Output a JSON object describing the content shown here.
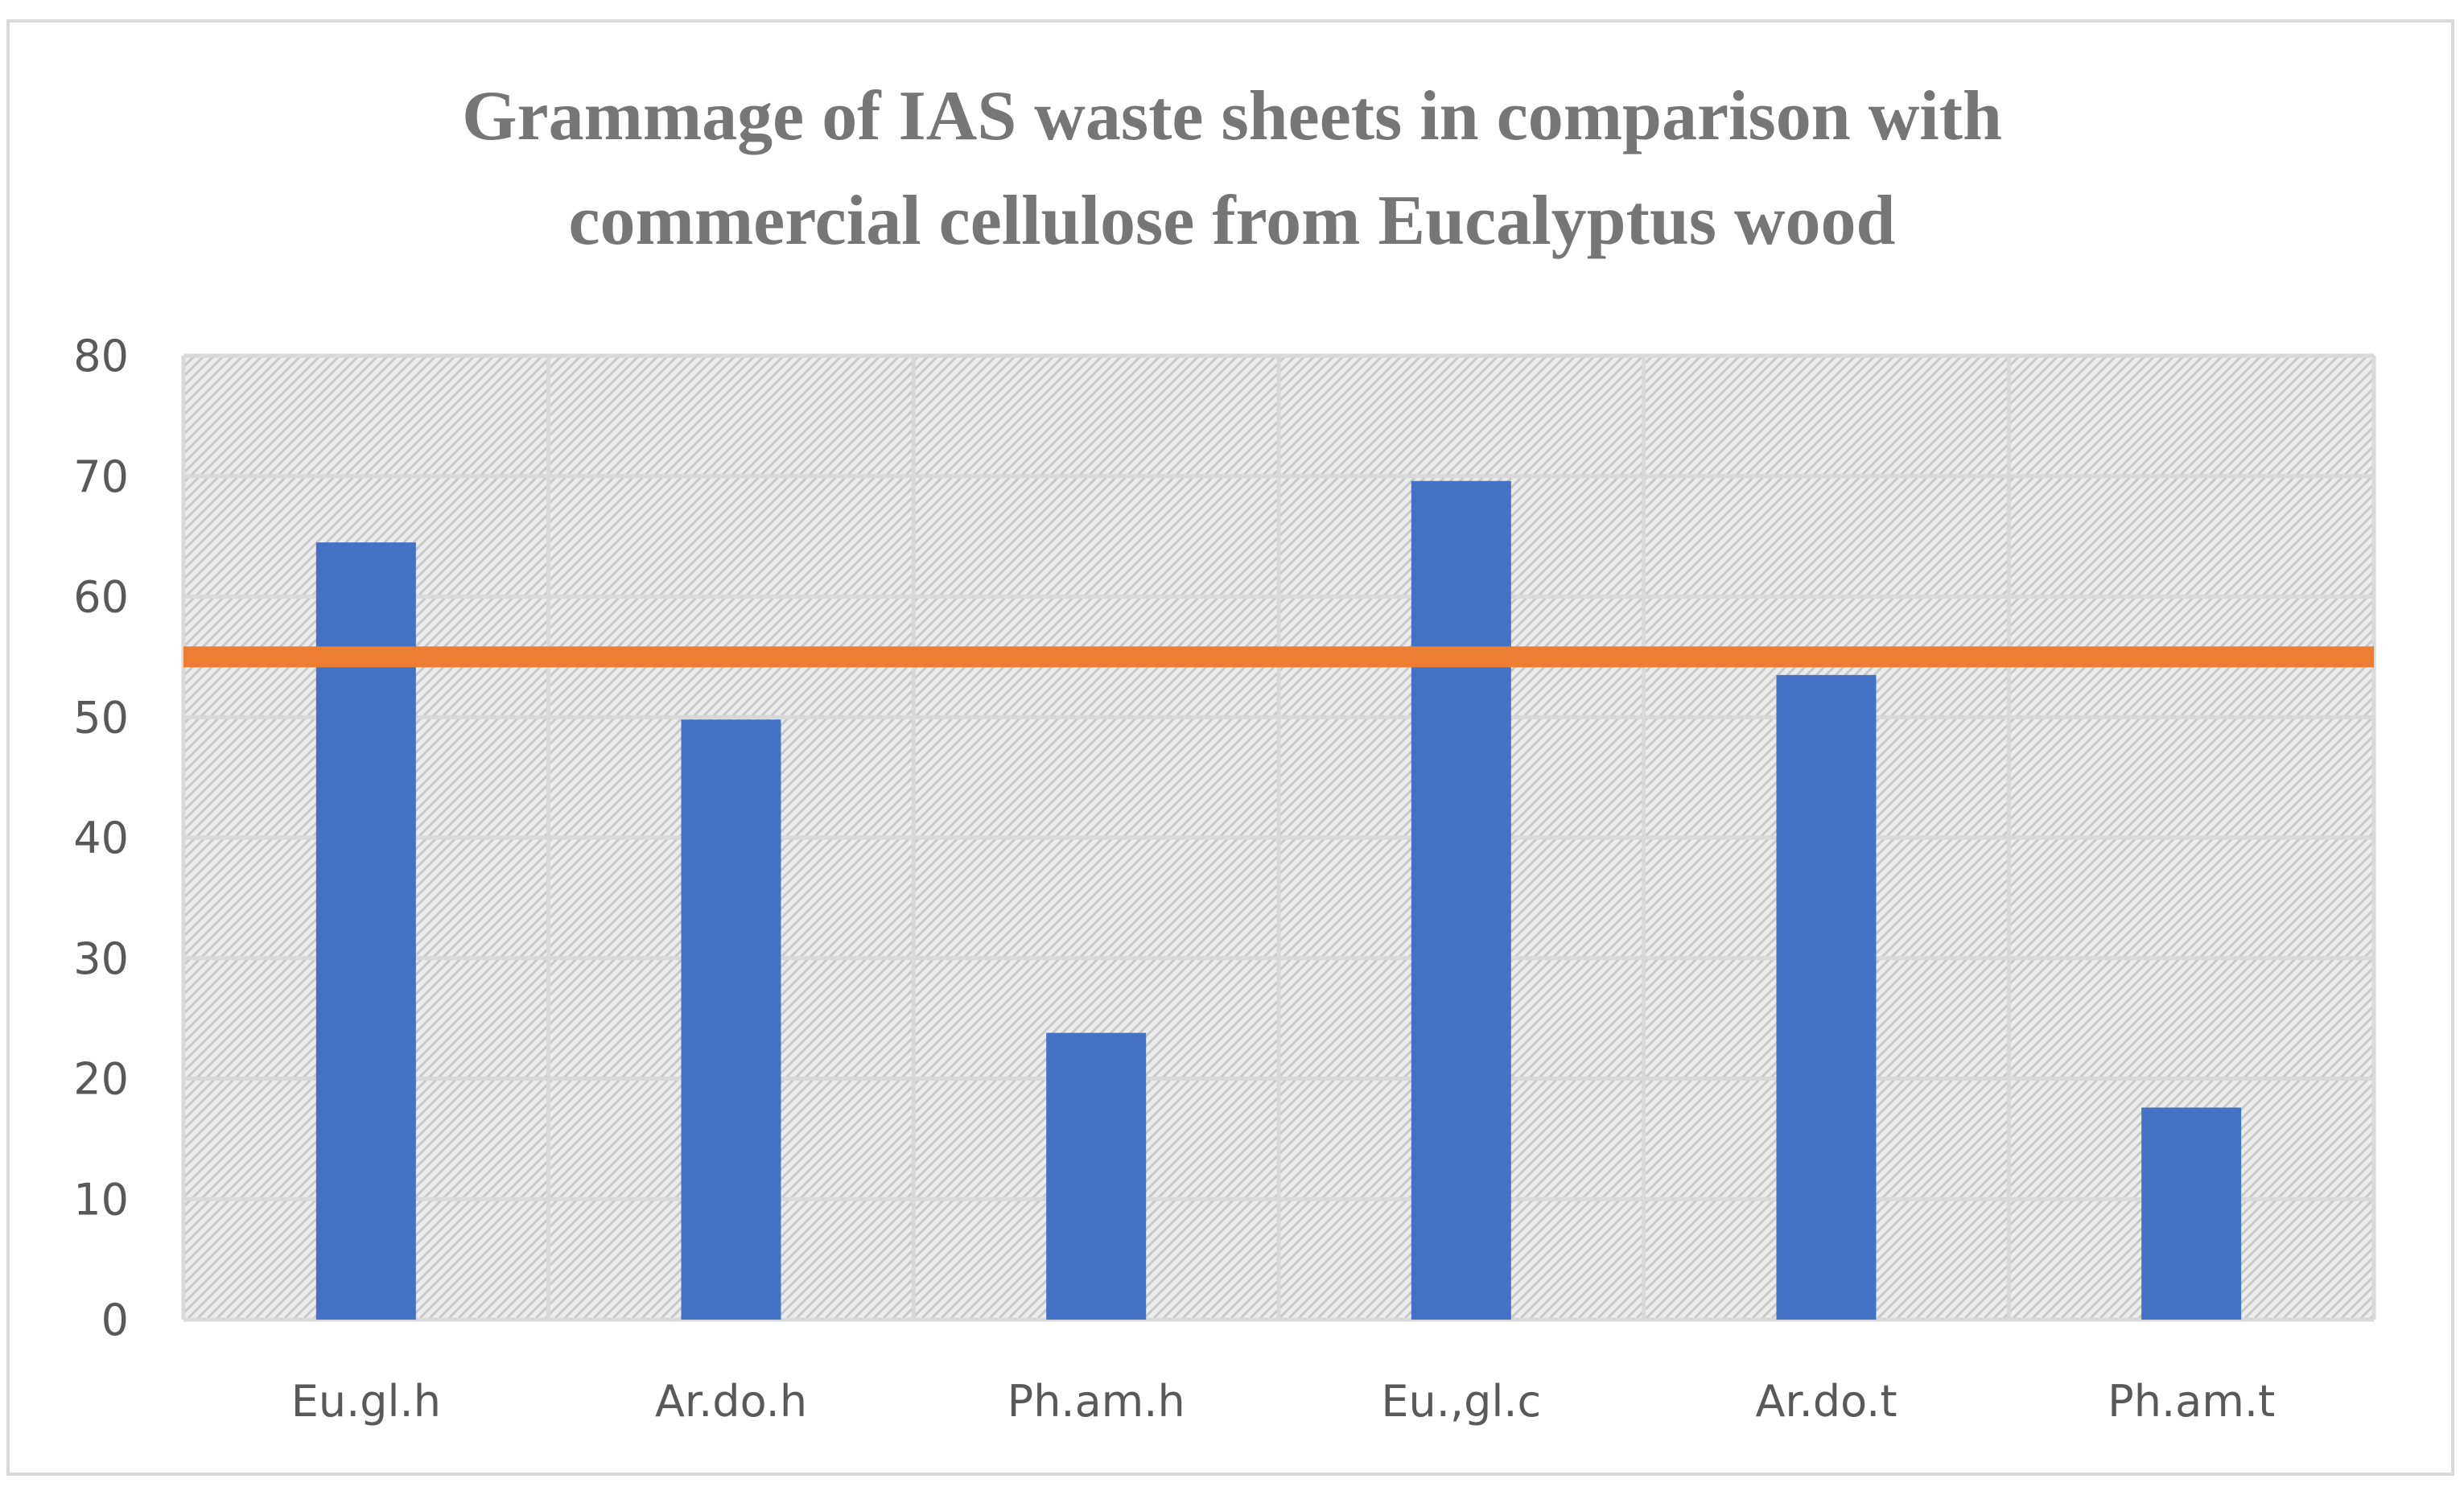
{
  "chart_data": {
    "type": "bar",
    "title": "Grammage of IAS waste sheets in comparison with commercial cellulose from Eucalyptus wood",
    "title_lines": [
      "Grammage of IAS waste sheets in comparison with",
      "commercial cellulose from Eucalyptus wood"
    ],
    "categories": [
      "Eu.gl.h",
      "Ar.do.h",
      "Ph.am.h",
      "Eu.,gl.c",
      "Ar.do.t",
      "Ph.am.t"
    ],
    "series": [
      {
        "type": "bar",
        "values": [
          64.5,
          49.8,
          23.8,
          69.6,
          53.5,
          17.6
        ],
        "color": "#4472c4"
      },
      {
        "type": "line",
        "values": [
          55,
          55,
          55,
          55,
          55,
          55
        ],
        "color": "#ed7d31"
      }
    ],
    "ylim": [
      0,
      80
    ],
    "yticks": [
      0,
      10,
      20,
      30,
      40,
      50,
      60,
      70,
      80
    ],
    "xlabel": "",
    "ylabel": "",
    "grid": true,
    "plot_background": "hatched light gray"
  }
}
